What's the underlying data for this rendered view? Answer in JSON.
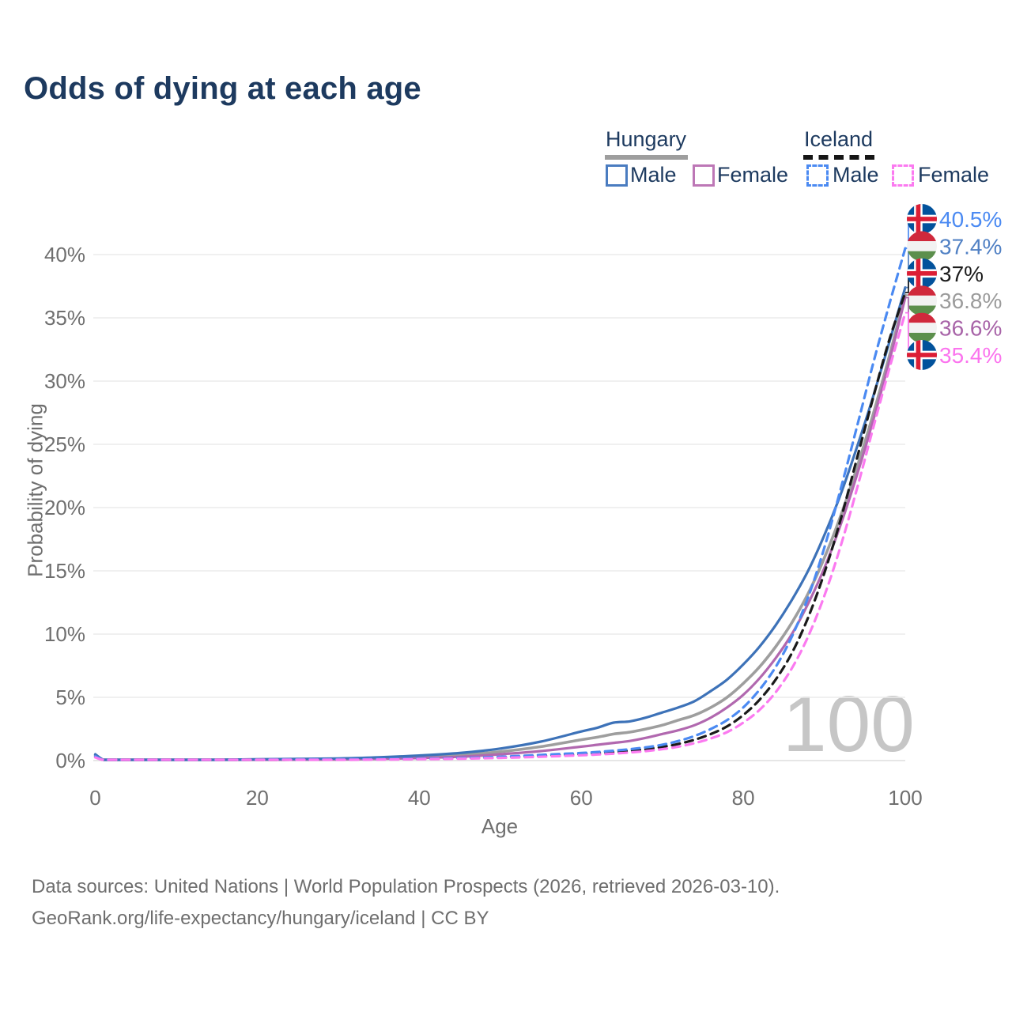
{
  "title": "Odds of dying at each age",
  "watermark": "100",
  "legend": {
    "groups": [
      {
        "name": "Hungary",
        "line_style": "solid",
        "underline_color": "#9e9e9e",
        "items": [
          {
            "label": "Male",
            "color": "#3d72b8",
            "dashed": false
          },
          {
            "label": "Female",
            "color": "#b168af",
            "dashed": false
          }
        ]
      },
      {
        "name": "Iceland",
        "line_style": "dashed",
        "underline_color": "#161616",
        "items": [
          {
            "label": "Male",
            "color": "#4b8af2",
            "dashed": true
          },
          {
            "label": "Female",
            "color": "#fb7af0",
            "dashed": true
          }
        ]
      }
    ]
  },
  "chart_data": {
    "type": "line",
    "title": "Odds of dying at each age",
    "xlabel": "Age",
    "ylabel": "Probability of dying",
    "xlim": [
      0,
      100
    ],
    "ylim": [
      0,
      43
    ],
    "x_ticks": [
      0,
      20,
      40,
      60,
      80,
      100
    ],
    "y_ticks": [
      "0%",
      "5%",
      "10%",
      "15%",
      "20%",
      "25%",
      "30%",
      "35%",
      "40%"
    ],
    "grid": "horizontal",
    "legend_position": "top-right",
    "x": [
      0,
      1,
      2,
      5,
      10,
      15,
      20,
      25,
      30,
      35,
      40,
      45,
      50,
      55,
      60,
      62,
      64,
      66,
      68,
      70,
      72,
      74,
      76,
      78,
      80,
      82,
      84,
      86,
      88,
      90,
      92,
      94,
      96,
      98,
      100
    ],
    "series": [
      {
        "id": "hungary-male",
        "name": "Hungary — Male",
        "country": "Hungary",
        "sex": "Male",
        "color": "#3d72b8",
        "dashed": false,
        "z": 3,
        "end_value_pct": 37.4,
        "values": [
          0.5,
          0.06,
          0.04,
          0.03,
          0.03,
          0.06,
          0.1,
          0.13,
          0.17,
          0.26,
          0.4,
          0.6,
          0.95,
          1.5,
          2.3,
          2.6,
          3.0,
          3.1,
          3.4,
          3.8,
          4.2,
          4.7,
          5.5,
          6.4,
          7.6,
          9.0,
          10.7,
          12.7,
          15.0,
          17.8,
          21.0,
          24.7,
          28.7,
          33.0,
          37.4
        ]
      },
      {
        "id": "hungary-female",
        "name": "Hungary — Female",
        "country": "Hungary",
        "sex": "Female",
        "color": "#b168af",
        "dashed": false,
        "z": 2,
        "end_value_pct": 36.6,
        "values": [
          0.4,
          0.045,
          0.03,
          0.02,
          0.02,
          0.04,
          0.06,
          0.07,
          0.09,
          0.13,
          0.2,
          0.3,
          0.5,
          0.75,
          1.1,
          1.25,
          1.4,
          1.55,
          1.8,
          2.1,
          2.4,
          2.8,
          3.4,
          4.2,
          5.2,
          6.5,
          8.1,
          10.0,
          12.4,
          15.2,
          18.6,
          22.5,
          26.8,
          31.5,
          36.6
        ]
      },
      {
        "id": "hungary-both",
        "name": "Hungary — Both sexes",
        "country": "Hungary",
        "sex": "Both",
        "color": "#9e9e9e",
        "dashed": false,
        "z": 1,
        "end_value_pct": 36.8,
        "values": [
          0.45,
          0.05,
          0.035,
          0.025,
          0.025,
          0.05,
          0.08,
          0.1,
          0.13,
          0.2,
          0.3,
          0.45,
          0.7,
          1.1,
          1.65,
          1.85,
          2.1,
          2.25,
          2.5,
          2.8,
          3.2,
          3.6,
          4.2,
          5.0,
          6.1,
          7.4,
          9.0,
          10.9,
          13.2,
          16.0,
          19.3,
          23.1,
          27.3,
          31.9,
          36.8
        ]
      },
      {
        "id": "iceland-male",
        "name": "Iceland — Male",
        "country": "Iceland",
        "sex": "Male",
        "color": "#4b8af2",
        "dashed": true,
        "z": 5,
        "end_value_pct": 40.5,
        "values": [
          0.35,
          0.03,
          0.02,
          0.015,
          0.015,
          0.04,
          0.07,
          0.09,
          0.1,
          0.12,
          0.15,
          0.2,
          0.3,
          0.45,
          0.6,
          0.68,
          0.78,
          0.9,
          1.05,
          1.25,
          1.55,
          1.95,
          2.5,
          3.2,
          4.2,
          5.6,
          7.4,
          9.8,
          12.9,
          16.8,
          21.4,
          26.3,
          31.3,
          36.0,
          40.5
        ]
      },
      {
        "id": "iceland-female",
        "name": "Iceland — Female",
        "country": "Iceland",
        "sex": "Female",
        "color": "#fb7af0",
        "dashed": true,
        "z": 6,
        "end_value_pct": 35.4,
        "values": [
          0.25,
          0.02,
          0.01,
          0.01,
          0.01,
          0.02,
          0.04,
          0.05,
          0.06,
          0.08,
          0.11,
          0.15,
          0.21,
          0.3,
          0.42,
          0.48,
          0.55,
          0.64,
          0.75,
          0.9,
          1.1,
          1.38,
          1.75,
          2.25,
          3.0,
          4.0,
          5.4,
          7.3,
          9.8,
          13.0,
          16.9,
          21.4,
          26.2,
          30.9,
          35.4
        ]
      },
      {
        "id": "iceland-both",
        "name": "Iceland — Both sexes",
        "country": "Iceland",
        "sex": "Both",
        "color": "#1a1a1a",
        "dashed": true,
        "z": 4,
        "end_value_pct": 37.0,
        "values": [
          0.3,
          0.025,
          0.015,
          0.01,
          0.01,
          0.03,
          0.05,
          0.07,
          0.08,
          0.1,
          0.13,
          0.18,
          0.25,
          0.38,
          0.52,
          0.6,
          0.68,
          0.78,
          0.9,
          1.08,
          1.32,
          1.65,
          2.1,
          2.7,
          3.6,
          4.8,
          6.4,
          8.5,
          11.3,
          14.8,
          19.0,
          23.8,
          28.6,
          33.2,
          37.0
        ]
      }
    ],
    "end_labels": [
      {
        "value": "40.5%",
        "pct": 40.5,
        "flag": "iceland",
        "series": "Iceland — Male",
        "color": "#4b8af2"
      },
      {
        "value": "37.4%",
        "pct": 37.4,
        "flag": "hungary",
        "series": "Hungary — Male",
        "color": "#5181c4"
      },
      {
        "value": "37%",
        "pct": 37.0,
        "flag": "iceland",
        "series": "Iceland — Both sexes",
        "color": "#1c1c1c"
      },
      {
        "value": "36.8%",
        "pct": 36.8,
        "flag": "hungary",
        "series": "Hungary — Both sexes",
        "color": "#9b9b9b"
      },
      {
        "value": "36.6%",
        "pct": 36.6,
        "flag": "hungary",
        "series": "Hungary — Female",
        "color": "#a864a8"
      },
      {
        "value": "35.4%",
        "pct": 35.4,
        "flag": "iceland",
        "series": "Iceland — Female",
        "color": "#fb74ee"
      }
    ]
  },
  "footer": {
    "line1": "Data sources: United Nations | World Population Prospects (2026, retrieved 2026-03-10).",
    "line2": "GeoRank.org/life-expectancy/hungary/iceland | CC BY"
  }
}
